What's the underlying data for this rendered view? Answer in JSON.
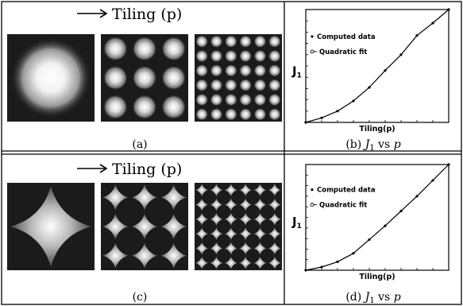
{
  "panels": {
    "a": {
      "header": "Tiling (p)",
      "caption": "(a)",
      "tilings": [
        1,
        3,
        6
      ],
      "pattern": "gaussian-spot"
    },
    "c": {
      "header": "Tiling (p)",
      "caption": "(c)",
      "tilings": [
        1,
        3,
        6
      ],
      "pattern": "four-point-star"
    },
    "b": {
      "caption_prefix": "(b) ",
      "caption_math": "J",
      "caption_sub": "1",
      "caption_rest": " vs ",
      "caption_var": "p"
    },
    "d": {
      "caption_prefix": "(d) ",
      "caption_math": "J",
      "caption_sub": "1",
      "caption_rest": " vs ",
      "caption_var": "p"
    }
  },
  "chart_data": [
    {
      "type": "scatter",
      "panel": "b",
      "xlabel": "Tiling(p)",
      "ylabel": "J",
      "ylabel_sub": "1",
      "legend": [
        "Computed data",
        "Quadratic fit"
      ],
      "legend_position": "top-left",
      "grid": false,
      "xlim": [
        1,
        10
      ],
      "ylim": [
        0,
        1
      ],
      "series": [
        {
          "name": "Computed data",
          "style": "markers",
          "x": [
            1,
            2,
            3,
            4,
            5,
            6,
            7,
            8,
            9,
            10
          ],
          "y": [
            0.0,
            0.04,
            0.1,
            0.19,
            0.31,
            0.46,
            0.6,
            0.77,
            0.88,
            1.0
          ]
        },
        {
          "name": "Quadratic fit",
          "style": "line",
          "x": [
            1,
            2,
            3,
            4,
            5,
            6,
            7,
            8,
            9,
            10
          ],
          "y": [
            0.0,
            0.04,
            0.1,
            0.19,
            0.31,
            0.46,
            0.6,
            0.77,
            0.88,
            1.0
          ]
        }
      ]
    },
    {
      "type": "scatter",
      "panel": "d",
      "xlabel": "Tiling(p)",
      "ylabel": "J",
      "ylabel_sub": "1",
      "legend": [
        "Computed data",
        "Quadratic fit"
      ],
      "legend_position": "top-left",
      "grid": false,
      "xlim": [
        1,
        10
      ],
      "ylim": [
        0,
        1
      ],
      "series": [
        {
          "name": "Computed data",
          "style": "markers",
          "x": [
            1,
            2,
            3,
            4,
            5,
            6,
            7,
            8,
            9,
            10
          ],
          "y": [
            0.0,
            0.03,
            0.08,
            0.16,
            0.29,
            0.42,
            0.56,
            0.7,
            0.85,
            1.0
          ]
        },
        {
          "name": "Quadratic fit",
          "style": "line",
          "x": [
            1,
            2,
            3,
            4,
            5,
            6,
            7,
            8,
            9,
            10
          ],
          "y": [
            0.0,
            0.03,
            0.08,
            0.16,
            0.29,
            0.42,
            0.56,
            0.7,
            0.85,
            1.0
          ]
        }
      ]
    }
  ]
}
